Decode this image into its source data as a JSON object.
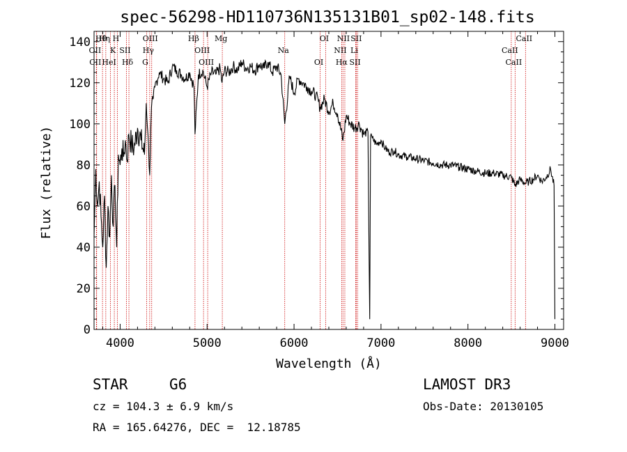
{
  "colors": {
    "axis": "#000000",
    "spectrum": "#000000",
    "lines": "#cc0000",
    "background": "#ffffff"
  },
  "chart_data": {
    "type": "line",
    "title": "spec-56298-HD110736N135131B01_sp02-148.fits",
    "xlabel": "Wavelength (Å)",
    "ylabel": "Flux (relative)",
    "xlim": [
      3700,
      9100
    ],
    "ylim": [
      0,
      145
    ],
    "xticks": [
      4000,
      5000,
      6000,
      7000,
      8000,
      9000
    ],
    "yticks": [
      0,
      20,
      40,
      60,
      80,
      100,
      120,
      140
    ],
    "series": [
      {
        "name": "flux",
        "x": [
          3700,
          3720,
          3740,
          3760,
          3780,
          3800,
          3820,
          3840,
          3860,
          3880,
          3900,
          3920,
          3940,
          3960,
          3980,
          4000,
          4020,
          4040,
          4060,
          4080,
          4100,
          4130,
          4160,
          4200,
          4240,
          4280,
          4300,
          4320,
          4340,
          4360,
          4380,
          4400,
          4450,
          4500,
          4550,
          4600,
          4650,
          4700,
          4750,
          4800,
          4850,
          4861,
          4900,
          4950,
          5000,
          5050,
          5100,
          5150,
          5172,
          5200,
          5250,
          5300,
          5350,
          5400,
          5450,
          5500,
          5550,
          5600,
          5650,
          5700,
          5750,
          5800,
          5850,
          5893,
          5950,
          6000,
          6050,
          6100,
          6150,
          6200,
          6250,
          6300,
          6350,
          6400,
          6450,
          6500,
          6563,
          6600,
          6650,
          6700,
          6750,
          6800,
          6850,
          6870,
          6880,
          6900,
          6950,
          7000,
          7050,
          7100,
          7150,
          7200,
          7300,
          7400,
          7500,
          7600,
          7700,
          7800,
          7900,
          8000,
          8100,
          8200,
          8300,
          8400,
          8500,
          8542,
          8600,
          8662,
          8700,
          8750,
          8800,
          8850,
          8900,
          8950,
          8990,
          9000
        ],
        "y": [
          45,
          78,
          60,
          72,
          55,
          40,
          65,
          30,
          60,
          45,
          75,
          50,
          70,
          40,
          85,
          80,
          88,
          84,
          92,
          82,
          95,
          90,
          88,
          98,
          92,
          85,
          110,
          95,
          75,
          108,
          112,
          118,
          125,
          122,
          120,
          128,
          126,
          124,
          122,
          125,
          118,
          95,
          124,
          126,
          118,
          125,
          124,
          127,
          120,
          126,
          125,
          128,
          126,
          130,
          127,
          128,
          126,
          129,
          127,
          130,
          125,
          128,
          124,
          100,
          123,
          115,
          122,
          120,
          118,
          116,
          114,
          108,
          112,
          106,
          110,
          105,
          92,
          104,
          100,
          98,
          100,
          95,
          96,
          5,
          94,
          93,
          90,
          92,
          88,
          86,
          87,
          85,
          84,
          83,
          82,
          81,
          80,
          80,
          79,
          78,
          77,
          76,
          76,
          75,
          74,
          70,
          73,
          71,
          72,
          73,
          75,
          72,
          74,
          78,
          70,
          5
        ]
      }
    ],
    "line_markers": [
      {
        "label": "Hθ",
        "wl": 3797
      },
      {
        "label": "OII",
        "wl": 3727
      },
      {
        "label": "CII",
        "wl": 3730
      },
      {
        "label": "Hη",
        "wl": 3835
      },
      {
        "label": "K",
        "wl": 3933
      },
      {
        "label": "HeI",
        "wl": 3889
      },
      {
        "label": "H",
        "wl": 3968
      },
      {
        "label": "SII",
        "wl": 4072
      },
      {
        "label": "Hδ",
        "wl": 4101
      },
      {
        "label": "OIII",
        "wl": 4363
      },
      {
        "label": "Hγ",
        "wl": 4340
      },
      {
        "label": "G",
        "wl": 4305
      },
      {
        "label": "Hβ",
        "wl": 4861
      },
      {
        "label": "OIII",
        "wl": 4959
      },
      {
        "label": "OIII",
        "wl": 5007
      },
      {
        "label": "Mg",
        "wl": 5175
      },
      {
        "label": "Na",
        "wl": 5893
      },
      {
        "label": "OI",
        "wl": 6300
      },
      {
        "label": "OI",
        "wl": 6363
      },
      {
        "label": "NII",
        "wl": 6548
      },
      {
        "label": "Hα",
        "wl": 6563
      },
      {
        "label": "NII",
        "wl": 6584
      },
      {
        "label": "Li",
        "wl": 6708
      },
      {
        "label": "SII",
        "wl": 6717
      },
      {
        "label": "SII",
        "wl": 6731
      },
      {
        "label": "CaII",
        "wl": 8498
      },
      {
        "label": "CaII",
        "wl": 8542
      },
      {
        "label": "CaII",
        "wl": 8662
      }
    ]
  },
  "info": {
    "class_label": "STAR",
    "subclass": "G6",
    "survey": "LAMOST DR3",
    "cz": "cz = 104.3 ± 6.9 km/s",
    "obs_date": "Obs-Date: 20130105",
    "coords": "RA = 165.64276, DEC =  12.18785"
  }
}
